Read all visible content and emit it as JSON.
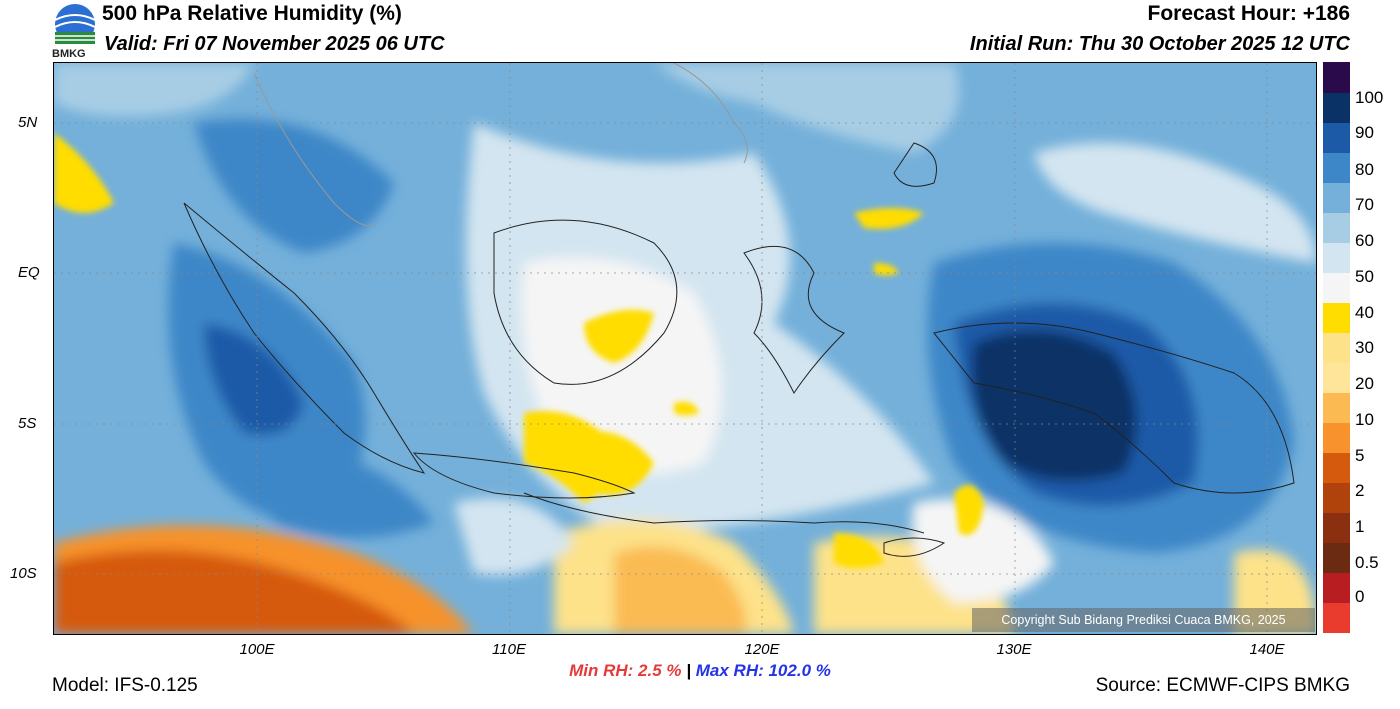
{
  "header": {
    "title": "500 hPa Relative Humidity (%)",
    "valid": "Valid: Fri 07 November 2025 06 UTC",
    "forecast_hour": "Forecast Hour: +186",
    "initial_run": "Initial Run: Thu 30 October 2025 12 UTC",
    "logo_text": "BMKG"
  },
  "map": {
    "lat_labels": [
      "5N",
      "EQ",
      "5S",
      "10S"
    ],
    "lon_labels": [
      "100E",
      "110E",
      "120E",
      "130E",
      "140E"
    ],
    "copyright": "Copyright Sub Bidang Prediksi Cuaca BMKG, 2025"
  },
  "colorbar": {
    "labels": [
      "100",
      "90",
      "80",
      "70",
      "60",
      "50",
      "40",
      "30",
      "20",
      "10",
      "5",
      "2",
      "1",
      "0.5",
      "0"
    ],
    "colors": [
      "#ea3c2e",
      "#b81d22",
      "#6b2a12",
      "#8a3010",
      "#b0420c",
      "#d65a0d",
      "#f7922c",
      "#fbbb52",
      "#fee59a",
      "#fde28a",
      "#ffdd00",
      "#f5f5f5",
      "#d3e5f0",
      "#a7cde5",
      "#74b0da",
      "#3d87c8",
      "#1c5aa8",
      "#0a3266",
      "#2a0a4a"
    ]
  },
  "stats": {
    "min": "Min RH:   2.5 %",
    "separator": "|",
    "max": "Max RH: 102.0 %"
  },
  "footer": {
    "model": "Model: IFS-0.125",
    "source": "Source: ECMWF-CIPS BMKG"
  }
}
